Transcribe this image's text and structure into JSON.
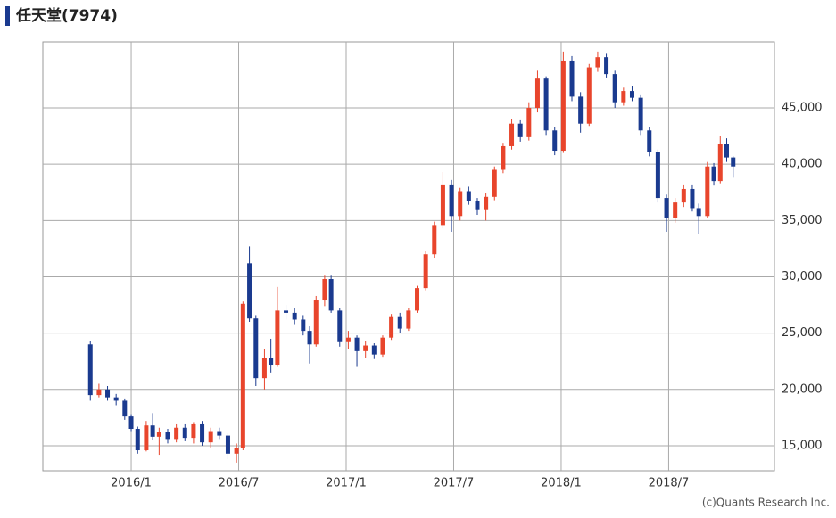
{
  "chart_data": {
    "type": "candlestick",
    "title": "任天堂(7974)",
    "credit": "(c)Quants Research Inc.",
    "up_color": "#e8452c",
    "down_color": "#1a3a8f",
    "grid": true,
    "xlim": [
      2015.589,
      2018.992
    ],
    "xticks": [
      {
        "value": 2016.0,
        "label": "2016/1"
      },
      {
        "value": 2016.5,
        "label": "2016/7"
      },
      {
        "value": 2017.0,
        "label": "2017/1"
      },
      {
        "value": 2017.5,
        "label": "2017/7"
      },
      {
        "value": 2018.0,
        "label": "2018/1"
      },
      {
        "value": 2018.5,
        "label": "2018/7"
      }
    ],
    "ylim": [
      12780,
      50860
    ],
    "yticks": [
      {
        "value": 15000,
        "label": "15,000"
      },
      {
        "value": 20000,
        "label": "20,000"
      },
      {
        "value": 25000,
        "label": "25,000"
      },
      {
        "value": 30000,
        "label": "30,000"
      },
      {
        "value": 35000,
        "label": "35,000"
      },
      {
        "value": 40000,
        "label": "40,000"
      },
      {
        "value": 45000,
        "label": "45,000"
      }
    ],
    "x": [
      2015.81,
      2015.85,
      2015.89,
      2015.93,
      2015.97,
      2016.0,
      2016.03,
      2016.07,
      2016.1,
      2016.13,
      2016.17,
      2016.21,
      2016.25,
      2016.29,
      2016.33,
      2016.37,
      2016.41,
      2016.45,
      2016.49,
      2016.52,
      2016.55,
      2016.58,
      2016.62,
      2016.65,
      2016.68,
      2016.72,
      2016.76,
      2016.8,
      2016.83,
      2016.86,
      2016.9,
      2016.93,
      2016.97,
      2017.01,
      2017.05,
      2017.09,
      2017.13,
      2017.17,
      2017.21,
      2017.25,
      2017.29,
      2017.33,
      2017.37,
      2017.41,
      2017.45,
      2017.49,
      2017.53,
      2017.57,
      2017.61,
      2017.65,
      2017.69,
      2017.73,
      2017.77,
      2017.81,
      2017.85,
      2017.89,
      2017.93,
      2017.97,
      2018.01,
      2018.05,
      2018.09,
      2018.13,
      2018.17,
      2018.21,
      2018.25,
      2018.29,
      2018.33,
      2018.37,
      2018.41,
      2018.45,
      2018.49,
      2018.53,
      2018.57,
      2018.61,
      2018.64,
      2018.68,
      2018.71,
      2018.74,
      2018.77,
      2018.8
    ],
    "open": [
      24000,
      19500,
      20000,
      19300,
      19000,
      17600,
      16500,
      14600,
      16800,
      15800,
      16200,
      15600,
      16600,
      15700,
      16900,
      15300,
      16300,
      15900,
      14300,
      14800,
      31200,
      26300,
      21000,
      22800,
      22200,
      27000,
      26800,
      26200,
      25200,
      24000,
      27900,
      29800,
      27000,
      24200,
      24600,
      23400,
      23900,
      23100,
      24600,
      26500,
      25400,
      27000,
      29000,
      32000,
      34600,
      38200,
      35400,
      37600,
      36700,
      36000,
      37100,
      39500,
      41600,
      43600,
      42400,
      45000,
      47600,
      43000,
      41200,
      49200,
      46000,
      43600,
      48600,
      49500,
      48000,
      45500,
      46500,
      45900,
      43000,
      41100,
      37000,
      35200,
      36600,
      37800,
      36100,
      35400,
      39800,
      38500,
      41800,
      40600
    ],
    "high": [
      24300,
      20500,
      20300,
      19600,
      19200,
      17800,
      16700,
      17200,
      17900,
      16600,
      16500,
      16900,
      16900,
      17100,
      17200,
      16600,
      16600,
      16100,
      15200,
      27800,
      32700,
      26600,
      23600,
      24500,
      29100,
      27500,
      27200,
      26600,
      25600,
      28300,
      30100,
      30100,
      27200,
      25200,
      24800,
      24300,
      24100,
      24800,
      26700,
      26800,
      27200,
      29200,
      32300,
      34900,
      39300,
      38600,
      37900,
      38000,
      37000,
      37400,
      39800,
      41900,
      44000,
      43900,
      45500,
      48300,
      47800,
      43300,
      50000,
      49600,
      46400,
      48900,
      50000,
      49800,
      48300,
      46800,
      46900,
      46200,
      43300,
      41300,
      37300,
      37000,
      38200,
      38200,
      36500,
      40200,
      40100,
      42500,
      42300,
      40700
    ],
    "low": [
      19000,
      19300,
      19000,
      18600,
      17300,
      16300,
      14300,
      14500,
      15500,
      14200,
      15200,
      15300,
      15400,
      15200,
      15000,
      14800,
      15600,
      13800,
      13500,
      14600,
      26000,
      20300,
      20000,
      21500,
      22000,
      26200,
      25800,
      24800,
      22300,
      23800,
      27400,
      26800,
      23800,
      23600,
      22000,
      22800,
      22700,
      22900,
      24400,
      25000,
      25200,
      26800,
      28800,
      31700,
      34300,
      34000,
      35000,
      36400,
      35500,
      35000,
      36800,
      39200,
      41300,
      42000,
      42100,
      44600,
      42600,
      40800,
      41000,
      45600,
      42800,
      43400,
      48200,
      47700,
      45000,
      45200,
      45600,
      42600,
      40700,
      36600,
      34000,
      34800,
      36200,
      35800,
      33800,
      35200,
      38100,
      38300,
      40200,
      38800
    ],
    "close": [
      19500,
      20000,
      19300,
      19000,
      17600,
      16500,
      14600,
      16800,
      15800,
      16200,
      15600,
      16600,
      15700,
      16900,
      15300,
      16300,
      15900,
      14300,
      14800,
      27600,
      26300,
      21000,
      22800,
      22200,
      27000,
      26800,
      26200,
      25200,
      24000,
      27900,
      29800,
      27000,
      24200,
      24600,
      23400,
      23900,
      23100,
      24600,
      26500,
      25400,
      27000,
      29000,
      32000,
      34600,
      38200,
      35400,
      37600,
      36700,
      36000,
      37100,
      39500,
      41600,
      43600,
      42400,
      45000,
      47600,
      43000,
      41200,
      49200,
      46000,
      43600,
      48600,
      49500,
      48000,
      45500,
      46500,
      45900,
      43000,
      41100,
      37000,
      35200,
      36600,
      37800,
      36100,
      35400,
      39800,
      38500,
      41800,
      40600,
      39800
    ]
  }
}
